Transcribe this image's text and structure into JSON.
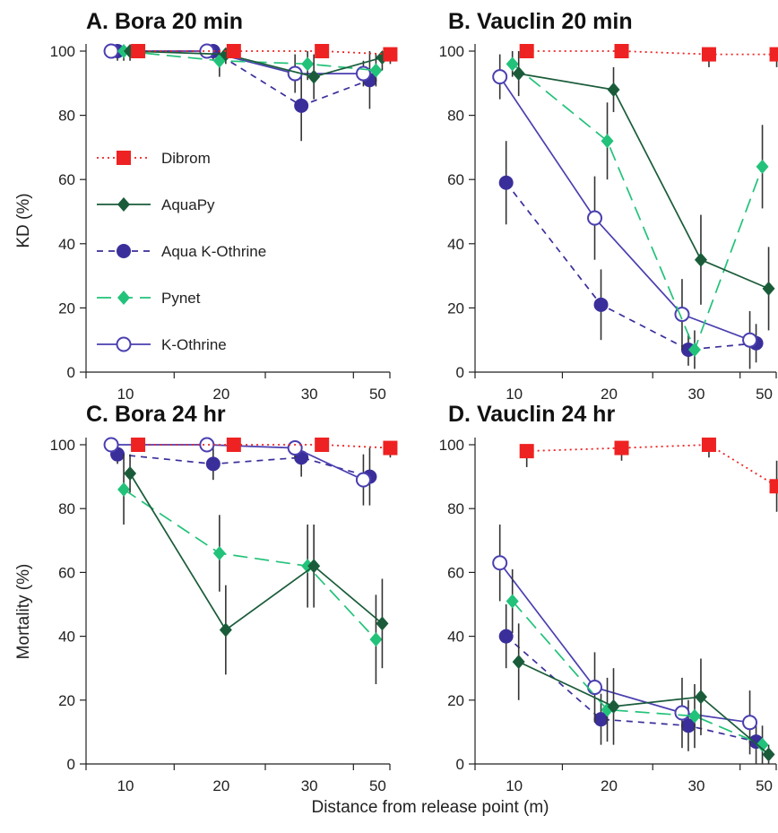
{
  "figure": {
    "ylabel_top": "KD (%)",
    "ylabel_bottom": "Mortality (%)",
    "xlabel": "Distance from release point (m)"
  },
  "legend": [
    {
      "series": "Dibrom",
      "label": "Dibrom"
    },
    {
      "series": "AquaPy",
      "label": "AquaPy"
    },
    {
      "series": "Aqua K-Othrine",
      "label": "Aqua K-Othrine"
    },
    {
      "series": "Pynet",
      "label": "Pynet"
    },
    {
      "series": "K-Othrine",
      "label": "K-Othrine"
    }
  ],
  "series_style": {
    "Dibrom": {
      "color": "#ee2222",
      "marker": "square",
      "dash": "dotted"
    },
    "AquaPy": {
      "color": "#1a5c3a",
      "marker": "diamond",
      "dash": "solid"
    },
    "Aqua K-Othrine": {
      "color": "#3a2f9a",
      "marker": "filled-circle",
      "dash": "dashed"
    },
    "Pynet": {
      "color": "#22c27a",
      "marker": "diamond",
      "dash": "longdash"
    },
    "K-Othrine": {
      "color": "#4a3fb0",
      "marker": "open-circle",
      "dash": "solid"
    }
  },
  "chart_data": [
    {
      "type": "line",
      "title": "A. Bora 20 min",
      "categories": [
        "10",
        "20",
        "30",
        "50"
      ],
      "ylim": [
        0,
        100
      ],
      "yticks": [
        0,
        20,
        40,
        60,
        80,
        100
      ],
      "series": [
        {
          "name": "Dibrom",
          "values": [
            100,
            100,
            100,
            99
          ],
          "error": [
            0,
            0,
            0,
            3
          ]
        },
        {
          "name": "AquaPy",
          "values": [
            100,
            99,
            92,
            98
          ],
          "error": [
            3,
            3,
            7,
            4
          ]
        },
        {
          "name": "Aqua K-Othrine",
          "values": [
            100,
            100,
            83,
            91
          ],
          "error": [
            3,
            3,
            11,
            9
          ]
        },
        {
          "name": "Pynet",
          "values": [
            100,
            97,
            96,
            94
          ],
          "error": [
            3,
            5,
            5,
            5
          ]
        },
        {
          "name": "K-Othrine",
          "values": [
            100,
            100,
            93,
            93
          ],
          "error": [
            0,
            0,
            6,
            4
          ]
        }
      ]
    },
    {
      "type": "line",
      "title": "B. Vauclin 20 min",
      "categories": [
        "10",
        "20",
        "30",
        "50"
      ],
      "ylim": [
        0,
        100
      ],
      "yticks": [
        0,
        20,
        40,
        60,
        80,
        100
      ],
      "series": [
        {
          "name": "Dibrom",
          "values": [
            100,
            100,
            99,
            99
          ],
          "error": [
            0,
            0,
            4,
            4
          ]
        },
        {
          "name": "AquaPy",
          "values": [
            93,
            88,
            35,
            26
          ],
          "error": [
            7,
            7,
            14,
            13
          ]
        },
        {
          "name": "Aqua K-Othrine",
          "values": [
            59,
            21,
            7,
            9
          ],
          "error": [
            13,
            11,
            5,
            6
          ]
        },
        {
          "name": "Pynet",
          "values": [
            96,
            72,
            7,
            64
          ],
          "error": [
            4,
            12,
            6,
            13
          ]
        },
        {
          "name": "K-Othrine",
          "values": [
            92,
            48,
            18,
            10
          ],
          "error": [
            7,
            13,
            11,
            9
          ]
        }
      ]
    },
    {
      "type": "line",
      "title": "C. Bora 24 hr",
      "categories": [
        "10",
        "20",
        "30",
        "50"
      ],
      "ylim": [
        0,
        100
      ],
      "yticks": [
        0,
        20,
        40,
        60,
        80,
        100
      ],
      "series": [
        {
          "name": "Dibrom",
          "values": [
            100,
            100,
            100,
            99
          ],
          "error": [
            0,
            0,
            0,
            3
          ]
        },
        {
          "name": "AquaPy",
          "values": [
            91,
            42,
            62,
            44
          ],
          "error": [
            6,
            14,
            13,
            14
          ]
        },
        {
          "name": "Aqua K-Othrine",
          "values": [
            97,
            94,
            96,
            90
          ],
          "error": [
            3,
            5,
            6,
            9
          ]
        },
        {
          "name": "Pynet",
          "values": [
            86,
            66,
            62,
            39
          ],
          "error": [
            11,
            12,
            13,
            14
          ]
        },
        {
          "name": "K-Othrine",
          "values": [
            100,
            100,
            99,
            89
          ],
          "error": [
            0,
            0,
            3,
            8
          ]
        }
      ]
    },
    {
      "type": "line",
      "title": "D. Vauclin 24 hr",
      "categories": [
        "10",
        "20",
        "30",
        "50"
      ],
      "ylim": [
        0,
        100
      ],
      "yticks": [
        0,
        20,
        40,
        60,
        80,
        100
      ],
      "series": [
        {
          "name": "Dibrom",
          "values": [
            98,
            99,
            100,
            87
          ],
          "error": [
            5,
            4,
            4,
            8
          ]
        },
        {
          "name": "AquaPy",
          "values": [
            32,
            18,
            21,
            3
          ],
          "error": [
            12,
            12,
            12,
            3
          ]
        },
        {
          "name": "Aqua K-Othrine",
          "values": [
            40,
            14,
            12,
            7
          ],
          "error": [
            10,
            8,
            8,
            7
          ]
        },
        {
          "name": "Pynet",
          "values": [
            51,
            17,
            15,
            6
          ],
          "error": [
            10,
            10,
            10,
            6
          ]
        },
        {
          "name": "K-Othrine",
          "values": [
            63,
            24,
            16,
            13
          ],
          "error": [
            12,
            11,
            11,
            10
          ]
        }
      ]
    }
  ]
}
